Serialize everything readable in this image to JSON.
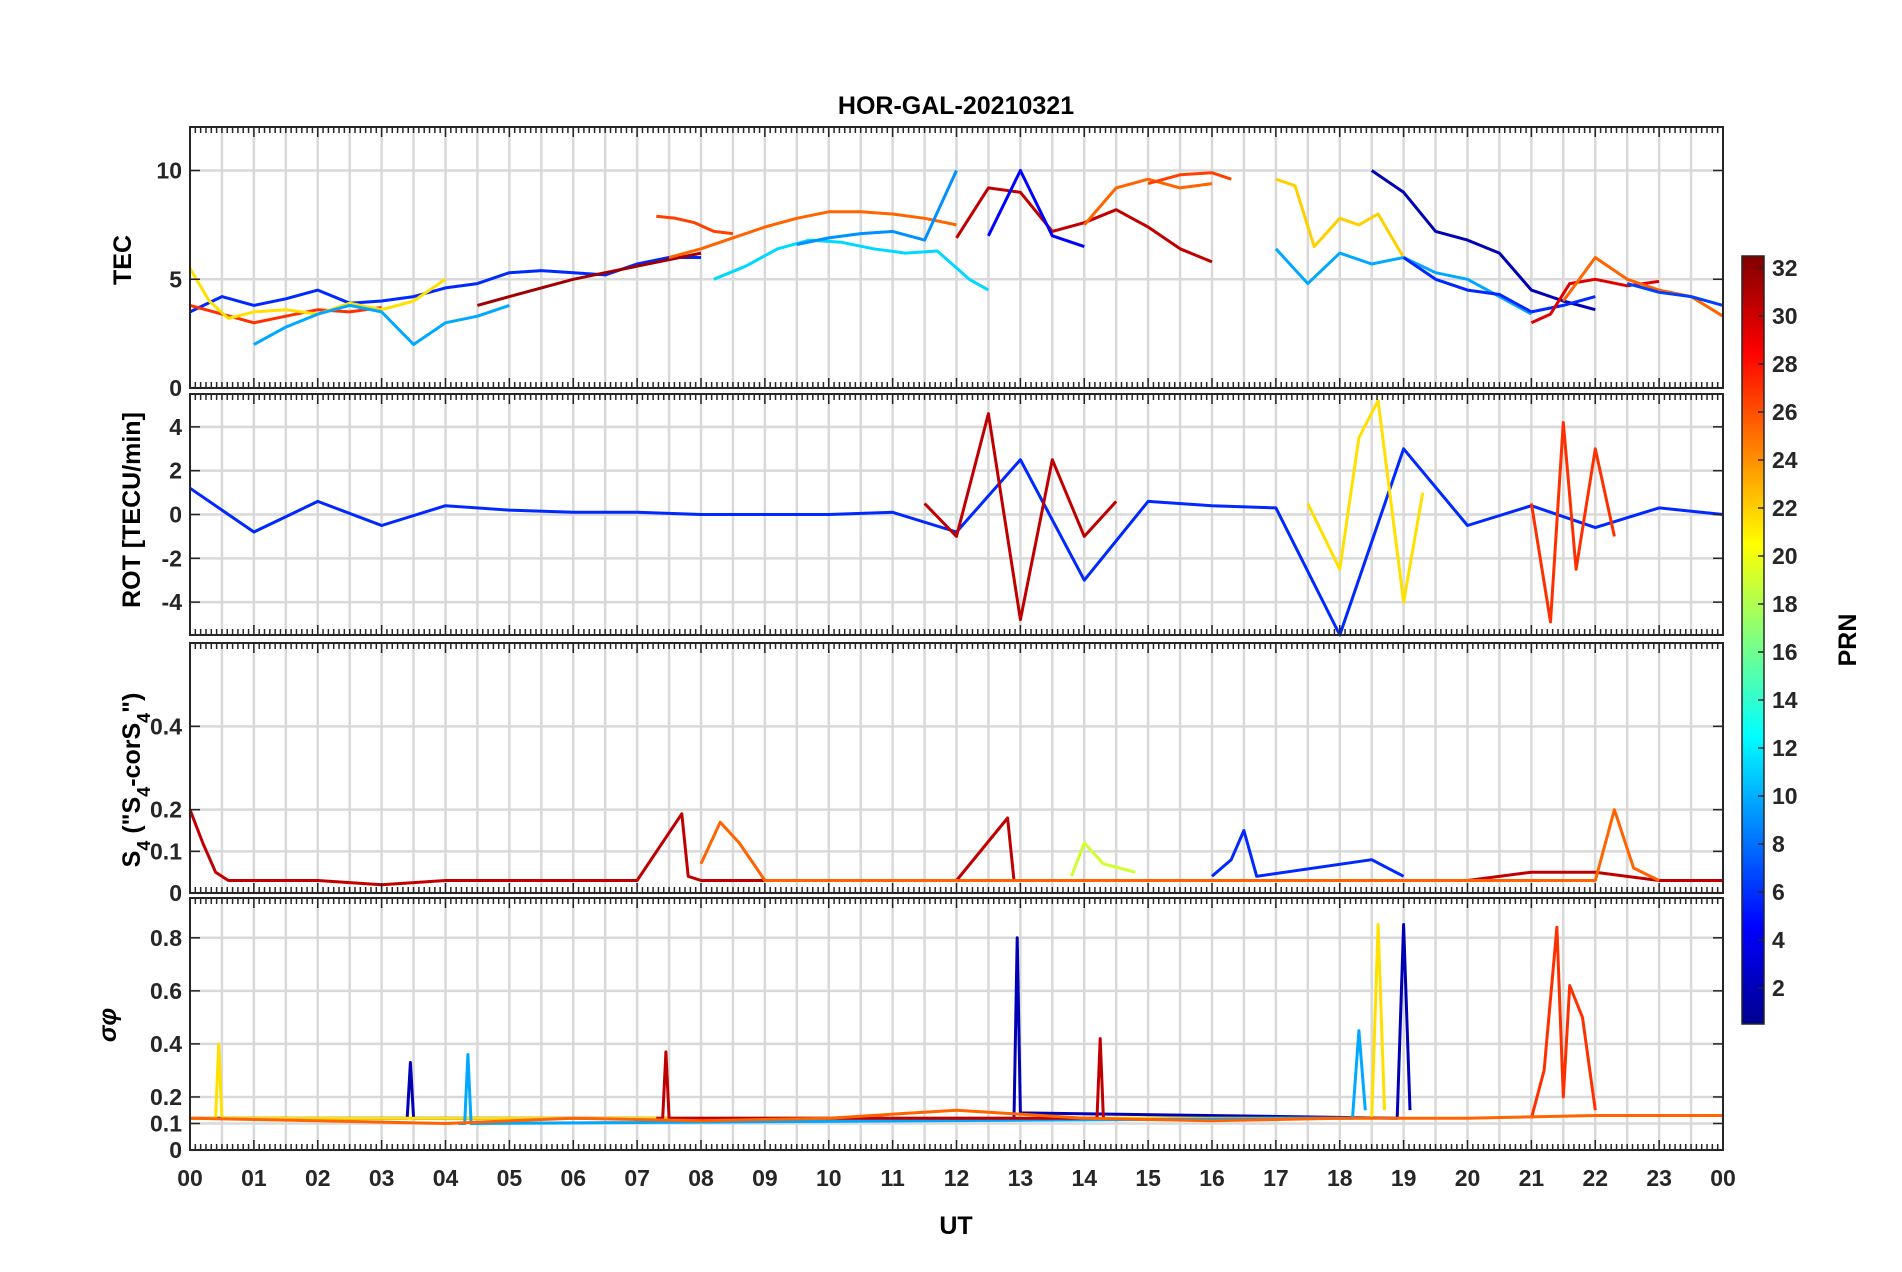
{
  "chart_data": [
    {
      "type": "line",
      "title": "HOR-GAL-20210321",
      "ylabel": "TEC",
      "xlabel": "",
      "xlim": [
        0,
        24
      ],
      "ylim": [
        0,
        12
      ],
      "yticks": [
        0,
        5,
        10
      ],
      "grid": true,
      "series_note": "colored by PRN",
      "series": [
        {
          "prn": 4,
          "color": "#0028ff",
          "x": [
            0,
            0.5,
            1,
            1.5,
            2,
            2.5,
            3,
            3.5,
            4,
            4.5,
            5,
            5.5,
            6,
            6.5,
            7,
            7.5,
            8
          ],
          "y": [
            3.5,
            4.2,
            3.8,
            4.1,
            4.5,
            3.9,
            4,
            4.2,
            4.6,
            4.8,
            5.3,
            5.4,
            5.3,
            5.2,
            5.7,
            6,
            6
          ]
        },
        {
          "prn": 28,
          "color": "#ff3000",
          "x": [
            0,
            0.5,
            1,
            1.5,
            2,
            2.5,
            3
          ],
          "y": [
            3.8,
            3.4,
            3,
            3.3,
            3.6,
            3.5,
            3.7
          ]
        },
        {
          "prn": 20,
          "color": "#ffe000",
          "x": [
            0,
            0.3,
            0.6,
            1,
            1.5,
            2,
            2.5,
            3,
            3.5,
            4
          ],
          "y": [
            5.5,
            4,
            3.2,
            3.5,
            3.6,
            3.4,
            3.9,
            3.6,
            4,
            5
          ]
        },
        {
          "prn": 10,
          "color": "#00a8ff",
          "x": [
            1,
            1.5,
            2,
            2.5,
            3,
            3.5,
            4,
            4.5,
            5
          ],
          "y": [
            2,
            2.8,
            3.4,
            3.8,
            3.5,
            2,
            3,
            3.3,
            3.8
          ]
        },
        {
          "prn": 31,
          "color": "#a00000",
          "x": [
            4.5,
            5,
            5.5,
            6,
            6.5,
            7,
            7.5,
            8
          ],
          "y": [
            3.8,
            4.2,
            4.6,
            5,
            5.3,
            5.6,
            5.9,
            6.2
          ]
        },
        {
          "prn": 25,
          "color": "#ff6400",
          "x": [
            7.5,
            8,
            8.5,
            9,
            9.5,
            10,
            10.5,
            11,
            11.5,
            12
          ],
          "y": [
            6,
            6.4,
            6.9,
            7.4,
            7.8,
            8.1,
            8.1,
            8,
            7.8,
            7.5
          ]
        },
        {
          "prn": 27,
          "color": "#ff4000",
          "x": [
            7.3,
            7.6,
            7.9,
            8.2,
            8.5
          ],
          "y": [
            7.9,
            7.8,
            7.6,
            7.2,
            7.1
          ]
        },
        {
          "prn": 12,
          "color": "#00d8ff",
          "x": [
            8.2,
            8.7,
            9.2,
            9.7,
            10.2,
            10.7,
            11.2,
            11.7,
            12.2,
            12.5
          ],
          "y": [
            5,
            5.6,
            6.4,
            6.8,
            6.7,
            6.4,
            6.2,
            6.3,
            5,
            4.5
          ]
        },
        {
          "prn": 9,
          "color": "#0090ff",
          "x": [
            9.5,
            10,
            10.5,
            11,
            11.5,
            12
          ],
          "y": [
            6.6,
            6.9,
            7.1,
            7.2,
            6.8,
            10
          ]
        },
        {
          "prn": 30,
          "color": "#c00000",
          "x": [
            12,
            12.5,
            13,
            13.5,
            14,
            14.5,
            15,
            15.5,
            16
          ],
          "y": [
            6.9,
            9.2,
            9,
            7.2,
            7.6,
            8.2,
            7.4,
            6.4,
            5.8
          ]
        },
        {
          "prn": 3,
          "color": "#0000ff",
          "x": [
            12.5,
            13,
            13.5,
            14
          ],
          "y": [
            7,
            10,
            7,
            6.5
          ]
        },
        {
          "prn": 25,
          "color": "#ff6400",
          "x": [
            14,
            14.5,
            15,
            15.5,
            16
          ],
          "y": [
            7.5,
            9.2,
            9.6,
            9.2,
            9.4
          ]
        },
        {
          "prn": 27,
          "color": "#ff4000",
          "x": [
            15,
            15.5,
            16,
            16.3
          ],
          "y": [
            9.4,
            9.8,
            9.9,
            9.6
          ]
        },
        {
          "prn": 21,
          "color": "#ffd000",
          "x": [
            17,
            17.3,
            17.6,
            18,
            18.3,
            18.6,
            19
          ],
          "y": [
            9.6,
            9.3,
            6.5,
            7.8,
            7.5,
            8,
            6
          ]
        },
        {
          "prn": 10,
          "color": "#00a8ff",
          "x": [
            17,
            17.5,
            18,
            18.5,
            19,
            19.5,
            20,
            20.5,
            21
          ],
          "y": [
            6.4,
            4.8,
            6.2,
            5.7,
            6,
            5.3,
            5,
            4.2,
            3.4
          ]
        },
        {
          "prn": 2,
          "color": "#0000b4",
          "x": [
            18.5,
            19,
            19.5,
            20,
            20.5,
            21,
            21.5,
            22
          ],
          "y": [
            10,
            9,
            7.2,
            6.8,
            6.2,
            4.5,
            4,
            3.6
          ]
        },
        {
          "prn": 4,
          "color": "#0028ff",
          "x": [
            19,
            19.5,
            20,
            20.5,
            21,
            21.5,
            22
          ],
          "y": [
            6,
            5,
            4.5,
            4.3,
            3.5,
            3.8,
            4.2
          ]
        },
        {
          "prn": 29,
          "color": "#e00000",
          "x": [
            21,
            21.3,
            21.6,
            22,
            22.5,
            23
          ],
          "y": [
            3,
            3.4,
            4.8,
            5,
            4.7,
            4.9
          ]
        },
        {
          "prn": 25,
          "color": "#ff6400",
          "x": [
            21.5,
            22,
            22.5,
            23,
            23.5,
            24
          ],
          "y": [
            4,
            6,
            5,
            4.5,
            4.2,
            3.3
          ]
        },
        {
          "prn": 6,
          "color": "#0040ff",
          "x": [
            22.5,
            23,
            23.5,
            24
          ],
          "y": [
            4.8,
            4.4,
            4.2,
            3.8
          ]
        }
      ]
    },
    {
      "type": "line",
      "ylabel": "ROT [TECU/min]",
      "xlim": [
        0,
        24
      ],
      "ylim": [
        -5.5,
        5.5
      ],
      "yticks": [
        -4,
        -2,
        0,
        2,
        4
      ],
      "grid": true,
      "series": [
        {
          "prn": 4,
          "color": "#0028ff",
          "x": [
            0,
            1,
            2,
            3,
            4,
            5,
            6,
            7,
            8,
            9,
            10,
            11,
            12,
            13,
            14,
            15,
            16,
            17,
            18,
            19,
            20,
            21,
            22,
            23,
            24
          ],
          "y": [
            1.2,
            -0.8,
            0.6,
            -0.5,
            0.4,
            0.2,
            0.1,
            0.1,
            0,
            0,
            0,
            0.1,
            -0.8,
            2.5,
            -3,
            0.6,
            0.4,
            0.3,
            -5.5,
            3,
            -0.5,
            0.4,
            -0.6,
            0.3,
            0
          ]
        },
        {
          "prn": 30,
          "color": "#c00000",
          "x": [
            11.5,
            12,
            12.5,
            13,
            13.5,
            14,
            14.5
          ],
          "y": [
            0.5,
            -1,
            4.6,
            -4.8,
            2.5,
            -1,
            0.6
          ]
        },
        {
          "prn": 20,
          "color": "#ffe000",
          "x": [
            17.5,
            18,
            18.3,
            18.6,
            19,
            19.3
          ],
          "y": [
            0.5,
            -2.5,
            3.5,
            5.2,
            -4,
            1
          ]
        },
        {
          "prn": 28,
          "color": "#ff3000",
          "x": [
            21,
            21.3,
            21.5,
            21.7,
            22,
            22.3
          ],
          "y": [
            0.5,
            -4.9,
            4.2,
            -2.5,
            3,
            -1
          ]
        }
      ]
    },
    {
      "type": "line",
      "ylabel": "S4 (\"S4-corS4\")",
      "xlim": [
        0,
        24
      ],
      "ylim": [
        0,
        0.6
      ],
      "yticks": [
        0,
        0.1,
        0.2,
        0.4
      ],
      "grid": true,
      "series": [
        {
          "prn": 30,
          "color": "#c00000",
          "x": [
            0,
            0.2,
            0.4,
            0.6,
            1,
            2,
            3,
            4,
            5,
            6,
            7,
            7.7,
            7.8,
            8,
            9,
            10,
            11,
            12,
            12.8,
            12.9,
            13,
            14,
            15,
            16,
            17,
            18,
            19,
            20,
            21,
            22,
            23,
            24
          ],
          "y": [
            0.2,
            0.12,
            0.05,
            0.03,
            0.03,
            0.03,
            0.02,
            0.03,
            0.03,
            0.03,
            0.03,
            0.19,
            0.04,
            0.03,
            0.03,
            0.03,
            0.03,
            0.03,
            0.18,
            0.03,
            0.03,
            0.03,
            0.03,
            0.03,
            0.03,
            0.03,
            0.03,
            0.03,
            0.05,
            0.05,
            0.03,
            0.03
          ]
        },
        {
          "prn": 25,
          "color": "#ff6400",
          "x": [
            8,
            8.3,
            8.6,
            9,
            22,
            22.3,
            22.6,
            23
          ],
          "y": [
            0.07,
            0.17,
            0.12,
            0.03,
            0.03,
            0.2,
            0.06,
            0.03
          ]
        },
        {
          "prn": 4,
          "color": "#0028ff",
          "x": [
            16,
            16.3,
            16.5,
            16.7,
            18.5,
            19
          ],
          "y": [
            0.04,
            0.08,
            0.15,
            0.04,
            0.08,
            0.04
          ]
        },
        {
          "prn": 18,
          "color": "#d0ff30",
          "x": [
            13.8,
            14,
            14.3,
            14.8
          ],
          "y": [
            0.04,
            0.12,
            0.07,
            0.05
          ]
        }
      ]
    },
    {
      "type": "line",
      "ylabel": "σφ",
      "xlim": [
        0,
        24
      ],
      "ylim": [
        0,
        0.95
      ],
      "yticks": [
        0,
        0.1,
        0.2,
        0.4,
        0.6,
        0.8
      ],
      "grid": true,
      "series": [
        {
          "prn": 2,
          "color": "#0000b4",
          "x": [
            0,
            3.4,
            3.45,
            3.5,
            12.9,
            12.95,
            13,
            18.9,
            19,
            19.1
          ],
          "y": [
            0.12,
            0.12,
            0.33,
            0.12,
            0.12,
            0.8,
            0.14,
            0.12,
            0.85,
            0.15
          ]
        },
        {
          "prn": 20,
          "color": "#ffe000",
          "x": [
            0,
            0.4,
            0.45,
            0.5,
            18.5,
            18.6,
            18.7
          ],
          "y": [
            0.12,
            0.12,
            0.4,
            0.12,
            0.12,
            0.85,
            0.15
          ]
        },
        {
          "prn": 10,
          "color": "#00a8ff",
          "x": [
            4.2,
            4.3,
            4.35,
            4.4,
            18.2,
            18.3,
            18.4
          ],
          "y": [
            0.1,
            0.1,
            0.36,
            0.1,
            0.12,
            0.45,
            0.15
          ]
        },
        {
          "prn": 30,
          "color": "#c00000",
          "x": [
            7.3,
            7.4,
            7.45,
            7.5,
            14.2,
            14.25,
            14.3
          ],
          "y": [
            0.12,
            0.12,
            0.37,
            0.12,
            0.12,
            0.42,
            0.12
          ]
        },
        {
          "prn": 28,
          "color": "#ff3000",
          "x": [
            21,
            21.2,
            21.4,
            21.5,
            21.6,
            21.8,
            22
          ],
          "y": [
            0.12,
            0.3,
            0.84,
            0.2,
            0.62,
            0.5,
            0.15
          ]
        },
        {
          "prn": 25,
          "color": "#ff6400",
          "x": [
            0,
            2,
            4,
            6,
            8,
            10,
            12,
            14,
            16,
            18,
            20,
            22,
            24
          ],
          "y": [
            0.12,
            0.11,
            0.1,
            0.12,
            0.11,
            0.12,
            0.15,
            0.12,
            0.11,
            0.12,
            0.12,
            0.13,
            0.13
          ]
        }
      ]
    }
  ],
  "x_axis": {
    "label": "UT",
    "ticks": [
      "00",
      "01",
      "02",
      "03",
      "04",
      "05",
      "06",
      "07",
      "08",
      "09",
      "10",
      "11",
      "12",
      "13",
      "14",
      "15",
      "16",
      "17",
      "18",
      "19",
      "20",
      "21",
      "22",
      "23",
      "00"
    ]
  },
  "colorbar": {
    "label": "PRN",
    "range": [
      1,
      32
    ],
    "ticks": [
      "2",
      "4",
      "6",
      "8",
      "10",
      "12",
      "14",
      "16",
      "18",
      "20",
      "22",
      "24",
      "26",
      "28",
      "30",
      "32"
    ],
    "colormap": "jet"
  }
}
